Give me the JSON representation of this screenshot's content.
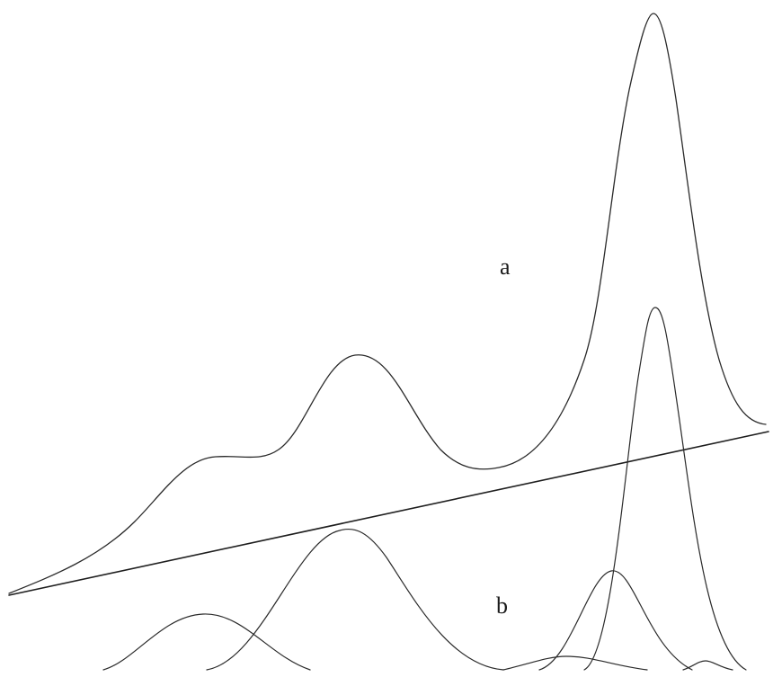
{
  "labels": {
    "a": "a",
    "b": "b"
  },
  "colors": {
    "line": "#2a2a2a",
    "background": "#ffffff"
  }
}
